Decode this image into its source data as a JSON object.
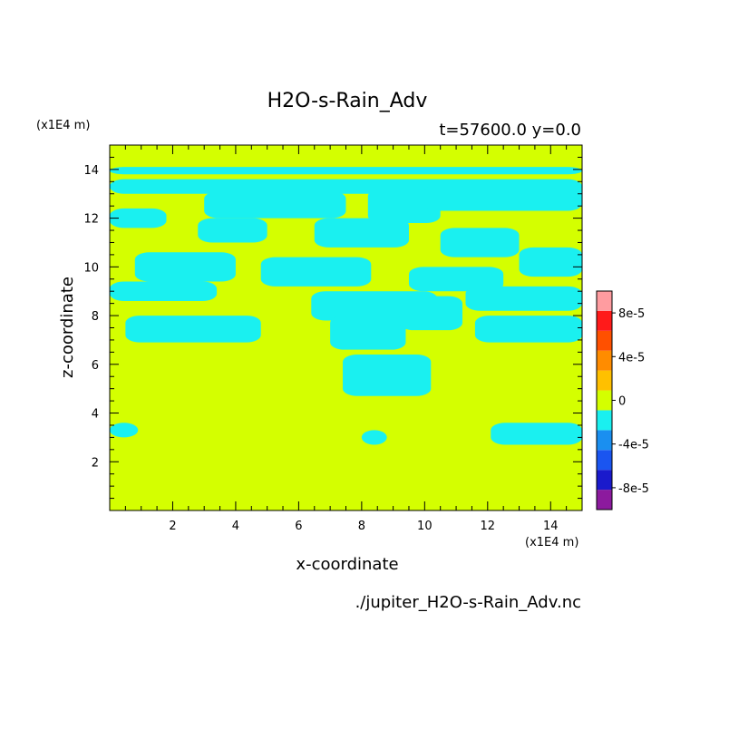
{
  "chart_data": {
    "type": "heatmap",
    "title": "H2O-s-Rain_Adv",
    "subtitle": "t=57600.0 y=0.0",
    "xlabel": "x-coordinate",
    "ylabel": "z-coordinate",
    "x_unit_label": "(x1E4 m)",
    "y_unit_label": "(x1E4 m)",
    "source_label": "./jupiter_H2O-s-Rain_Adv.nc",
    "xlim": [
      0,
      15
    ],
    "ylim": [
      0,
      15
    ],
    "x_ticks": [
      {
        "value": 2,
        "label": "2"
      },
      {
        "value": 4,
        "label": "4"
      },
      {
        "value": 6,
        "label": "6"
      },
      {
        "value": 8,
        "label": "8"
      },
      {
        "value": 10,
        "label": "10"
      },
      {
        "value": 12,
        "label": "12"
      },
      {
        "value": 14,
        "label": "14"
      }
    ],
    "y_ticks": [
      {
        "value": 2,
        "label": "2"
      },
      {
        "value": 4,
        "label": "4"
      },
      {
        "value": 6,
        "label": "6"
      },
      {
        "value": 8,
        "label": "8"
      },
      {
        "value": 10,
        "label": "10"
      },
      {
        "value": 12,
        "label": "12"
      },
      {
        "value": 14,
        "label": "14"
      }
    ],
    "colorbar": {
      "levels": [
        -0.0001,
        -8e-05,
        -6e-05,
        -4e-05,
        -2e-05,
        0,
        2e-05,
        4e-05,
        6e-05,
        8e-05,
        0.0001
      ],
      "colors": [
        "#8c1a9e",
        "#1a1acc",
        "#1a55f0",
        "#1a8ff0",
        "#1af0f0",
        "#d4ff00",
        "#ffc000",
        "#ff8c00",
        "#ff5000",
        "#ff1a1a",
        "#ff9ca0"
      ],
      "tick_labels": [
        {
          "value": 8e-05,
          "label": "8e-5"
        },
        {
          "value": 4e-05,
          "label": "4e-5"
        },
        {
          "value": 0,
          "label": "0"
        },
        {
          "value": -4e-05,
          "label": "-4e-5"
        },
        {
          "value": -8e-05,
          "label": "-8e-5"
        }
      ]
    },
    "field": {
      "background_value_color": "#d4ff00",
      "negative_value_color": "#1af0f0",
      "description_value_range": [
        -2e-05,
        0
      ],
      "negative_regions": [
        {
          "x": [
            0.0,
            15.0
          ],
          "z": [
            13.8,
            14.1
          ]
        },
        {
          "x": [
            0.0,
            15.0
          ],
          "z": [
            13.0,
            13.6
          ]
        },
        {
          "x": [
            3.0,
            7.5
          ],
          "z": [
            12.0,
            13.1
          ]
        },
        {
          "x": [
            8.2,
            10.5
          ],
          "z": [
            11.8,
            13.2
          ]
        },
        {
          "x": [
            10.0,
            15.0
          ],
          "z": [
            12.3,
            13.4
          ]
        },
        {
          "x": [
            0.0,
            1.8
          ],
          "z": [
            11.6,
            12.4
          ]
        },
        {
          "x": [
            2.8,
            5.0
          ],
          "z": [
            11.0,
            12.0
          ]
        },
        {
          "x": [
            6.5,
            9.5
          ],
          "z": [
            10.8,
            12.0
          ]
        },
        {
          "x": [
            10.5,
            13.0
          ],
          "z": [
            10.4,
            11.6
          ]
        },
        {
          "x": [
            0.8,
            4.0
          ],
          "z": [
            9.4,
            10.6
          ]
        },
        {
          "x": [
            4.8,
            8.3
          ],
          "z": [
            9.2,
            10.4
          ]
        },
        {
          "x": [
            9.5,
            12.5
          ],
          "z": [
            9.0,
            10.0
          ]
        },
        {
          "x": [
            13.0,
            15.0
          ],
          "z": [
            9.6,
            10.8
          ]
        },
        {
          "x": [
            0.0,
            3.4
          ],
          "z": [
            8.6,
            9.4
          ]
        },
        {
          "x": [
            6.4,
            10.4
          ],
          "z": [
            7.8,
            9.0
          ]
        },
        {
          "x": [
            11.3,
            15.0
          ],
          "z": [
            8.2,
            9.2
          ]
        },
        {
          "x": [
            0.5,
            4.8
          ],
          "z": [
            6.9,
            8.0
          ]
        },
        {
          "x": [
            7.0,
            9.4
          ],
          "z": [
            6.6,
            8.0
          ]
        },
        {
          "x": [
            9.2,
            11.2
          ],
          "z": [
            7.4,
            8.8
          ]
        },
        {
          "x": [
            11.6,
            15.0
          ],
          "z": [
            6.9,
            8.0
          ]
        },
        {
          "x": [
            7.4,
            10.2
          ],
          "z": [
            4.7,
            6.4
          ]
        },
        {
          "x": [
            0.0,
            0.9
          ],
          "z": [
            3.0,
            3.6
          ]
        },
        {
          "x": [
            8.0,
            8.8
          ],
          "z": [
            2.7,
            3.3
          ]
        },
        {
          "x": [
            12.1,
            15.0
          ],
          "z": [
            2.7,
            3.6
          ]
        }
      ]
    }
  }
}
